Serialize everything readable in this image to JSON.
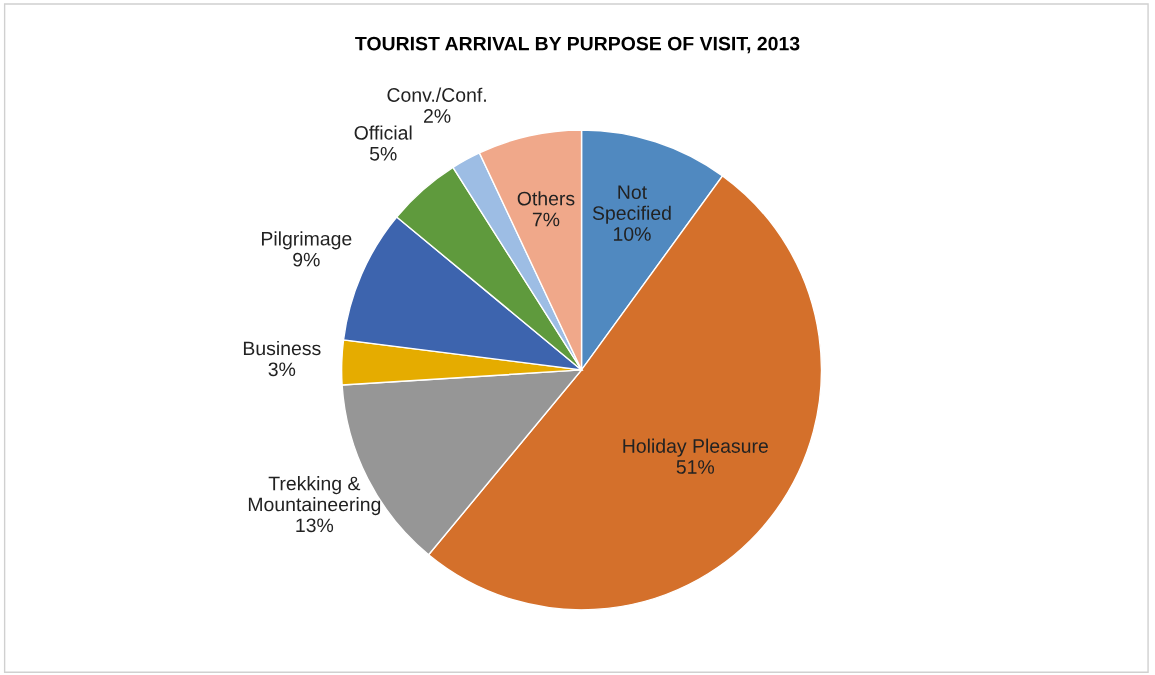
{
  "chart_data": {
    "type": "pie",
    "title": "TOURIST ARRIVAL BY PURPOSE OF VISIT, 2013",
    "categories": [
      "Not Specified",
      "Holiday Pleasure",
      "Trekking & Mountaineering",
      "Business",
      "Pilgrimage",
      "Official",
      "Conv./Conf.",
      "Others"
    ],
    "values": [
      10,
      51,
      13,
      3,
      9,
      5,
      2,
      7
    ],
    "colors": [
      "#5089c0",
      "#d4702b",
      "#969696",
      "#e5ac00",
      "#3d64ae",
      "#5f9a3d",
      "#9dbde4",
      "#f0a88a"
    ],
    "value_labels": [
      "10%",
      "51%",
      "13%",
      "3%",
      "9%",
      "5%",
      "2%",
      "7%"
    ],
    "legend": false
  }
}
